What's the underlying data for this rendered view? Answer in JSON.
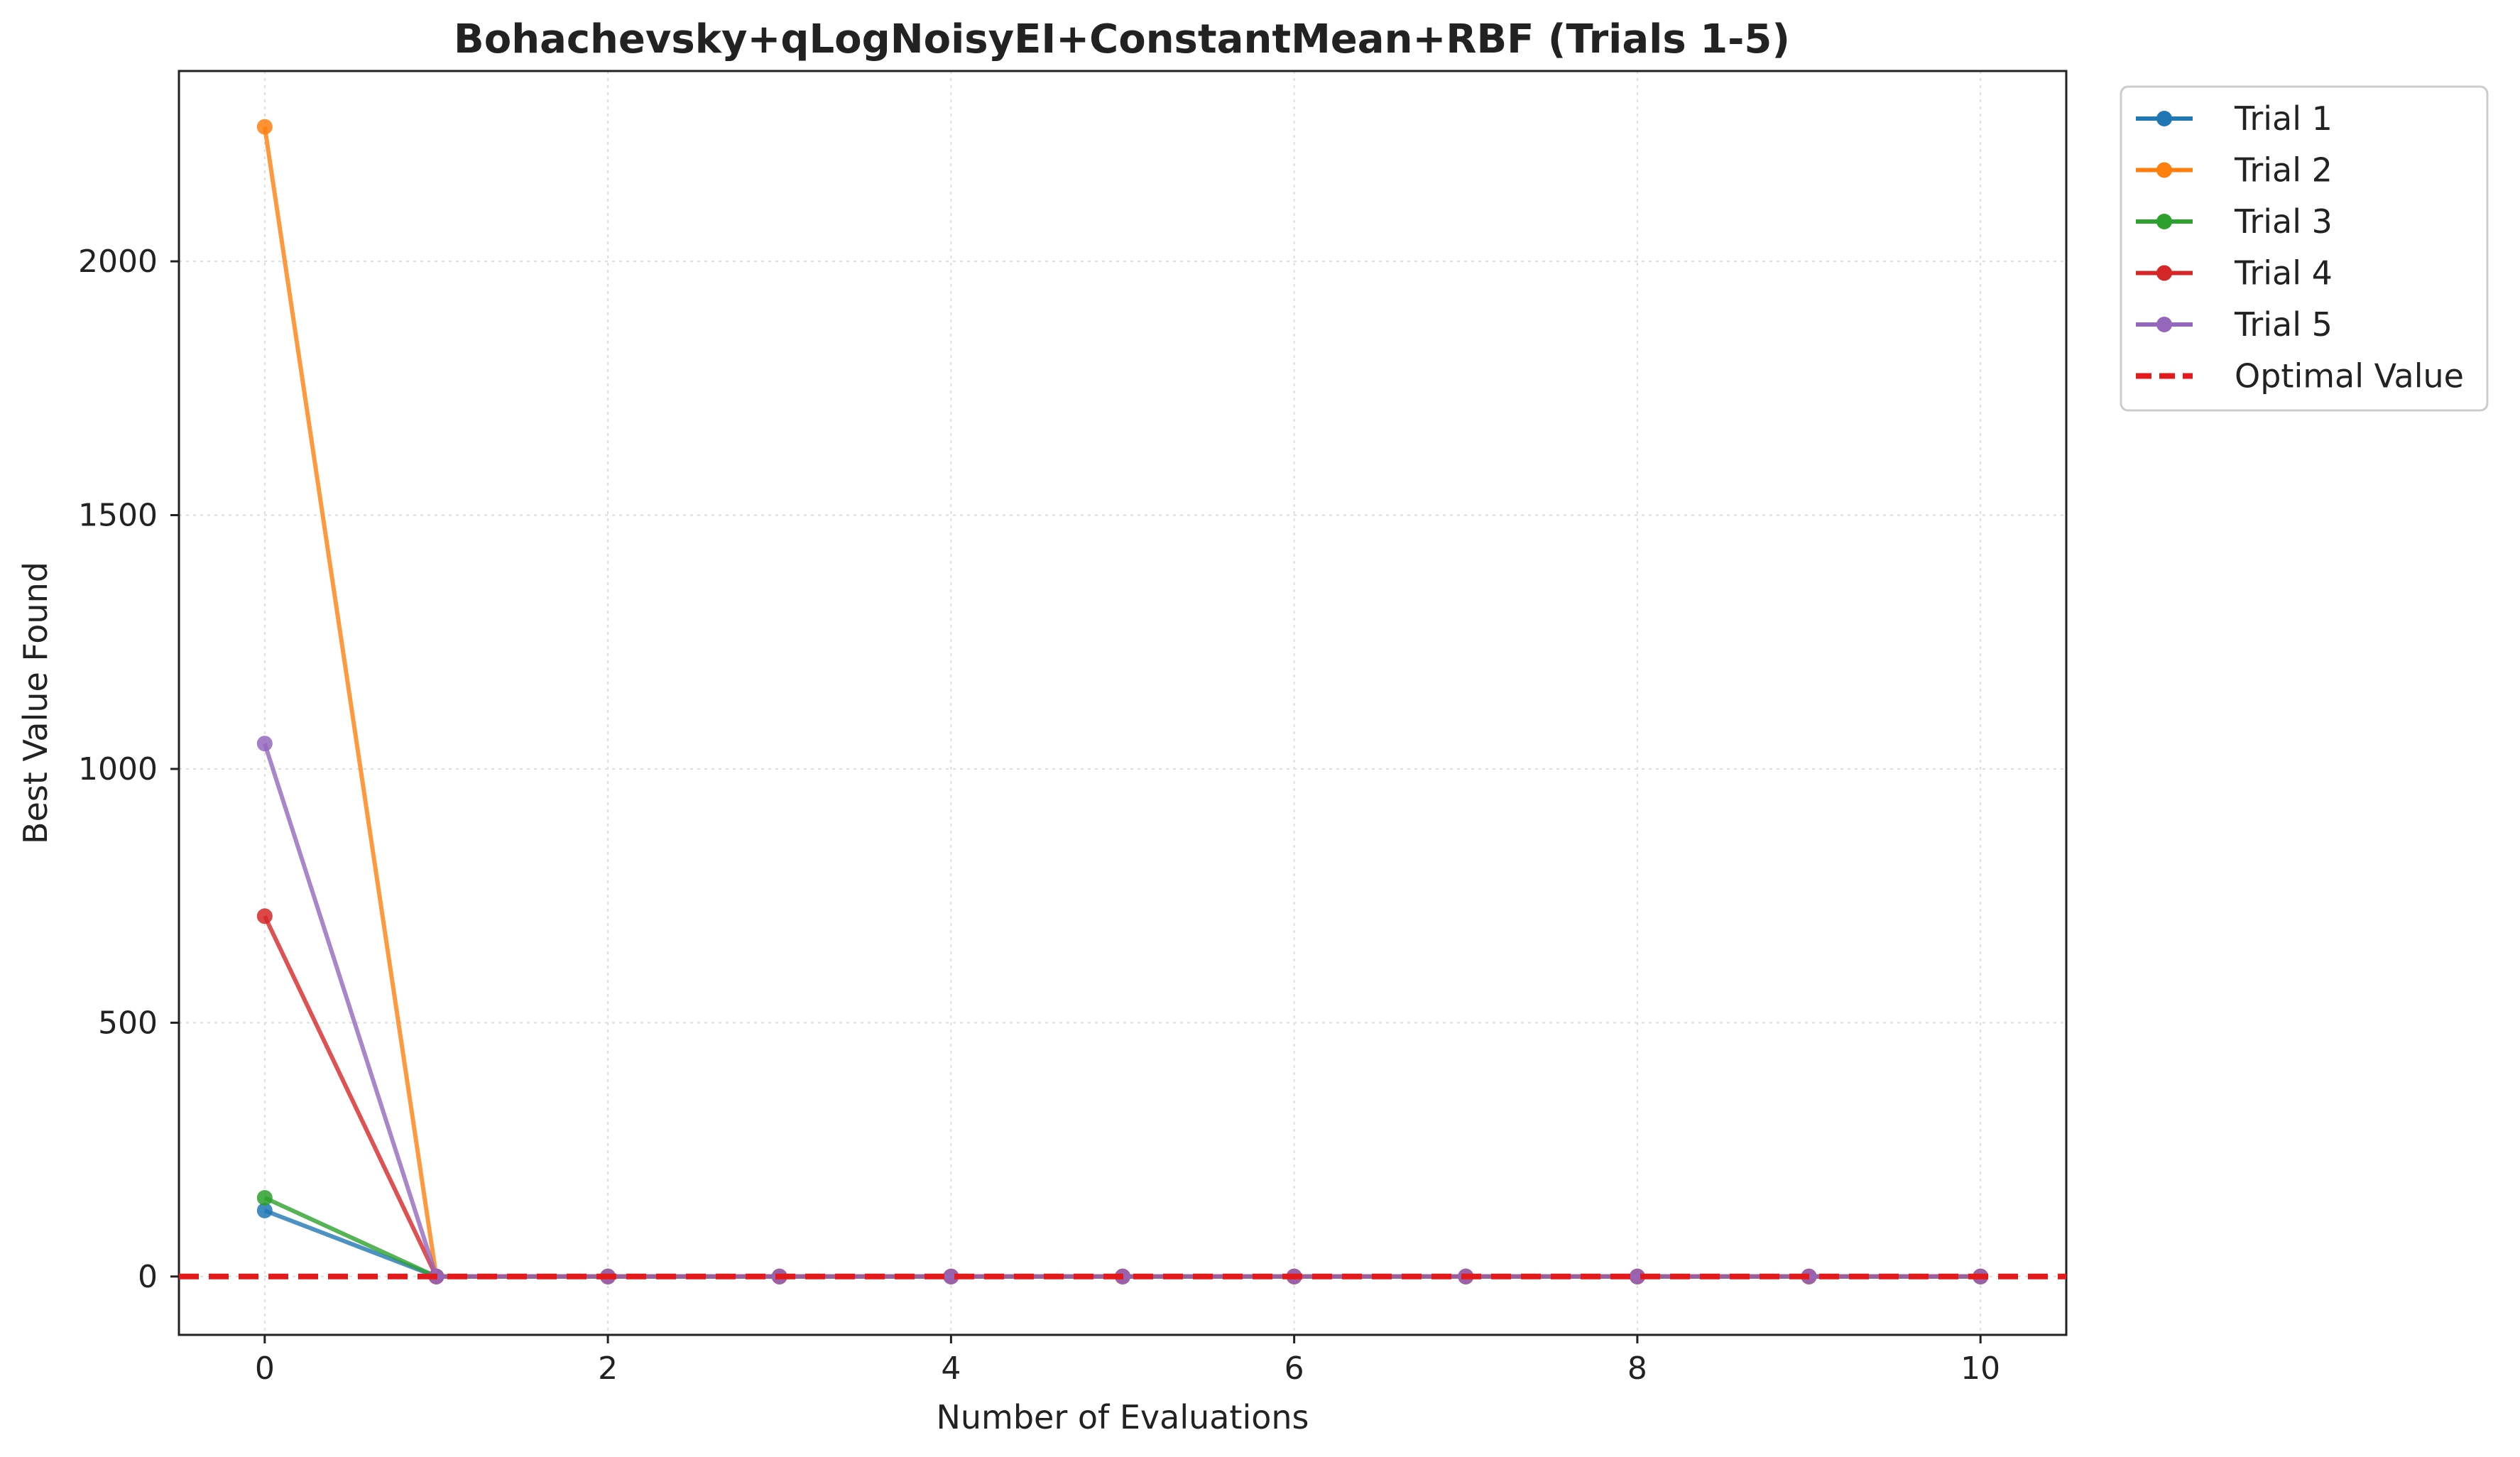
{
  "chart_data": {
    "type": "line",
    "title": "Bohachevsky+qLogNoisyEI+ConstantMean+RBF (Trials 1-5)",
    "xlabel": "Number of Evaluations",
    "ylabel": "Best Value Found",
    "xlim": [
      -0.5,
      10.5
    ],
    "ylim": [
      -115,
      2375
    ],
    "xticks": [
      0,
      2,
      4,
      6,
      8,
      10
    ],
    "yticks": [
      0,
      500,
      1000,
      1500,
      2000
    ],
    "grid": true,
    "legend_position": "outside-top-right",
    "x": [
      0,
      1,
      2,
      3,
      4,
      5,
      6,
      7,
      8,
      9,
      10
    ],
    "series": [
      {
        "name": "Trial 1",
        "color": "#1f77b4",
        "values": [
          130,
          0,
          0,
          0,
          0,
          0,
          0,
          0,
          0,
          0,
          0
        ]
      },
      {
        "name": "Trial 2",
        "color": "#ff7f0e",
        "values": [
          2265,
          0,
          0,
          0,
          0,
          0,
          0,
          0,
          0,
          0,
          0
        ]
      },
      {
        "name": "Trial 3",
        "color": "#2ca02c",
        "values": [
          155,
          0,
          0,
          0,
          0,
          0,
          0,
          0,
          0,
          0,
          0
        ]
      },
      {
        "name": "Trial 4",
        "color": "#d62728",
        "values": [
          710,
          0,
          0,
          0,
          0,
          0,
          0,
          0,
          0,
          0,
          0
        ]
      },
      {
        "name": "Trial 5",
        "color": "#9467bd",
        "values": [
          1050,
          0,
          0,
          0,
          0,
          0,
          0,
          0,
          0,
          0,
          0
        ]
      }
    ],
    "reference_line": {
      "name": "Optimal Value",
      "value": 0,
      "color": "#e31a1c",
      "style": "dashed"
    }
  }
}
